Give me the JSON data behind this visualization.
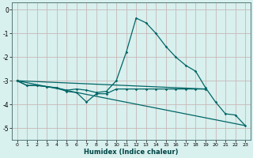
{
  "xlabel": "Humidex (Indice chaleur)",
  "bg_color": "#d8f0ee",
  "grid_color": "#c8b8b8",
  "line_color": "#006666",
  "xlim": [
    -0.5,
    23.5
  ],
  "ylim": [
    -5.5,
    0.3
  ],
  "yticks": [
    0,
    -1,
    -2,
    -3,
    -4,
    -5
  ],
  "xticks": [
    0,
    1,
    2,
    3,
    4,
    5,
    6,
    7,
    8,
    9,
    10,
    11,
    12,
    13,
    14,
    15,
    16,
    17,
    18,
    19,
    20,
    21,
    22,
    23
  ],
  "curve1_x": [
    0,
    1,
    2,
    3,
    4,
    5,
    6,
    7,
    8,
    9,
    10,
    11,
    12,
    13,
    14,
    15,
    16,
    17,
    18,
    19,
    20,
    21,
    22,
    23
  ],
  "curve1_y": [
    -3.0,
    -3.2,
    -3.2,
    -3.25,
    -3.3,
    -3.4,
    -3.35,
    -3.4,
    -3.5,
    -3.45,
    -3.0,
    -1.8,
    -0.35,
    -0.55,
    -1.0,
    -1.55,
    -2.0,
    -2.35,
    -2.6,
    -3.3,
    -3.9,
    -4.4,
    -4.45,
    -4.9
  ],
  "curve2_x": [
    0,
    1,
    2,
    3,
    4,
    5,
    6,
    7,
    8,
    9,
    10,
    11,
    12,
    13,
    14,
    15,
    16,
    17,
    18,
    19
  ],
  "curve2_y": [
    -3.0,
    -3.2,
    -3.2,
    -3.25,
    -3.3,
    -3.45,
    -3.5,
    -3.9,
    -3.55,
    -3.55,
    -3.35,
    -3.35,
    -3.35,
    -3.35,
    -3.35,
    -3.35,
    -3.35,
    -3.35,
    -3.35,
    -3.35
  ],
  "line3_x": [
    0,
    19
  ],
  "line3_y": [
    -3.0,
    -3.35
  ],
  "line4_x": [
    0,
    23
  ],
  "line4_y": [
    -3.0,
    -4.9
  ]
}
